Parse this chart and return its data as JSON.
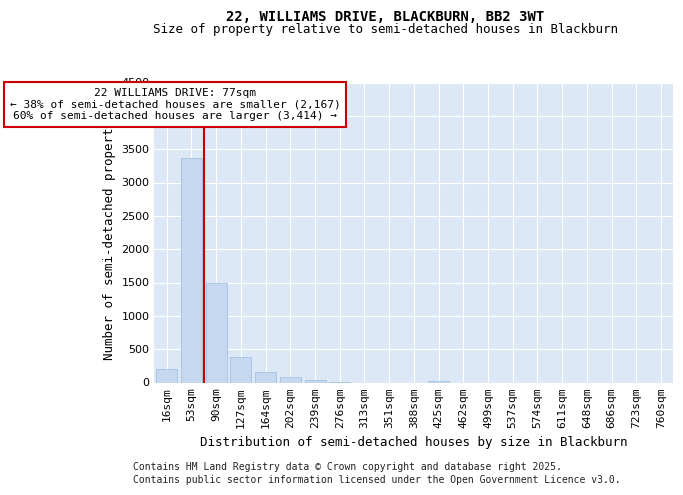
{
  "title_line1": "22, WILLIAMS DRIVE, BLACKBURN, BB2 3WT",
  "title_line2": "Size of property relative to semi-detached houses in Blackburn",
  "xlabel": "Distribution of semi-detached houses by size in Blackburn",
  "ylabel": "Number of semi-detached properties",
  "categories": [
    "16sqm",
    "53sqm",
    "90sqm",
    "127sqm",
    "164sqm",
    "202sqm",
    "239sqm",
    "276sqm",
    "313sqm",
    "351sqm",
    "388sqm",
    "425sqm",
    "462sqm",
    "499sqm",
    "537sqm",
    "574sqm",
    "611sqm",
    "648sqm",
    "686sqm",
    "723sqm",
    "760sqm"
  ],
  "values": [
    205,
    3370,
    1500,
    380,
    155,
    80,
    40,
    5,
    0,
    0,
    0,
    30,
    0,
    0,
    0,
    0,
    0,
    0,
    0,
    0,
    0
  ],
  "bar_color": "#c5d8ef",
  "bar_edge_color": "#9abcd9",
  "ylim": [
    0,
    4500
  ],
  "yticks": [
    0,
    500,
    1000,
    1500,
    2000,
    2500,
    3000,
    3500,
    4000,
    4500
  ],
  "red_line_color": "#cc0000",
  "red_line_x": 1.5,
  "annotation_text_line1": "22 WILLIAMS DRIVE: 77sqm",
  "annotation_text_line2": "← 38% of semi-detached houses are smaller (2,167)",
  "annotation_text_line3": "60% of semi-detached houses are larger (3,414) →",
  "annotation_box_color": "#ffffff",
  "annotation_box_edge": "#cc0000",
  "footer_line1": "Contains HM Land Registry data © Crown copyright and database right 2025.",
  "footer_line2": "Contains public sector information licensed under the Open Government Licence v3.0.",
  "background_color": "#dce8f5",
  "grid_color": "#ffffff",
  "title_fontsize": 10,
  "subtitle_fontsize": 9,
  "axis_label_fontsize": 9,
  "tick_fontsize": 8,
  "annotation_fontsize": 8,
  "footer_fontsize": 7
}
